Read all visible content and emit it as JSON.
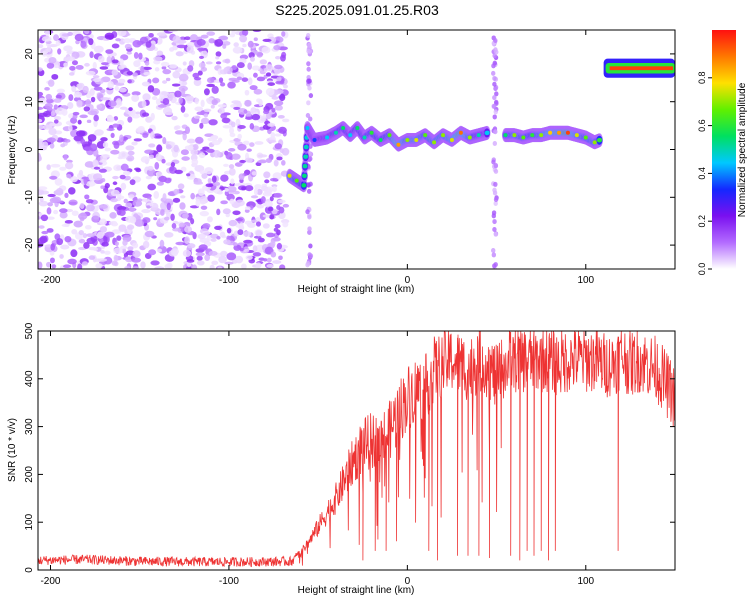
{
  "title": "S225.2025.091.01.25.R03",
  "colors": {
    "snr_line": "#ee3333",
    "plot_background": "#ffffff",
    "colormap_stops": [
      "#ffffff",
      "#b36bff",
      "#7a10f0",
      "#1428ff",
      "#00c8ff",
      "#00e060",
      "#60f000",
      "#ffe000",
      "#ff7800",
      "#ff1010"
    ]
  },
  "chart_data": [
    {
      "type": "heatmap",
      "xlabel": "Height of straight line (km)",
      "ylabel": "Frequency (Hz)",
      "xlim": [
        -207,
        150
      ],
      "ylim": [
        -25,
        25
      ],
      "x_ticks": [
        -200,
        -100,
        0,
        100
      ],
      "x_tick_labels": [
        "-200",
        "-100",
        "0",
        "100"
      ],
      "y_ticks": [
        -20,
        -10,
        0,
        10,
        20
      ],
      "y_tick_labels": [
        "-20",
        "-10",
        "0",
        "10",
        "20"
      ],
      "colorbar": {
        "label": "Normalized spectral amplitude",
        "range": [
          0,
          1
        ],
        "ticks": [
          0.0,
          0.2,
          0.4,
          0.6,
          0.8
        ],
        "tick_labels": [
          "0.0",
          "0.2",
          "0.4",
          "0.6",
          "0.8"
        ]
      },
      "ridge": {
        "x": [
          -66,
          -62,
          -58,
          -56,
          -52,
          -45,
          -40,
          -36,
          -32,
          -28,
          -24,
          -20,
          -15,
          -10,
          -5,
          0,
          5,
          10,
          15,
          20,
          25,
          30,
          35,
          40,
          45,
          55,
          60,
          65,
          70,
          75,
          80,
          85,
          90,
          95,
          100,
          105,
          108
        ],
        "freq": [
          -5.5,
          -6.5,
          -7.5,
          4.5,
          2.0,
          2.5,
          3.5,
          4.5,
          3.0,
          4.5,
          2.5,
          3.5,
          2.0,
          3.0,
          1.0,
          2.0,
          2.0,
          3.0,
          1.5,
          3.0,
          2.0,
          3.5,
          2.5,
          3.0,
          3.5,
          3.0,
          3.0,
          2.5,
          3.0,
          3.0,
          3.5,
          3.5,
          3.5,
          3.0,
          2.5,
          1.5,
          2.0
        ],
        "amp": [
          0.75,
          0.65,
          0.55,
          0.45,
          0.35,
          0.45,
          0.5,
          0.55,
          0.45,
          0.55,
          0.5,
          0.6,
          0.55,
          0.65,
          0.85,
          0.7,
          0.75,
          0.65,
          0.7,
          0.7,
          0.75,
          0.9,
          0.7,
          0.5,
          0.45,
          0.55,
          0.7,
          0.65,
          0.6,
          0.7,
          0.8,
          0.85,
          0.95,
          0.75,
          0.65,
          0.7,
          0.6
        ]
      },
      "upper_band": {
        "x_range": [
          110,
          150
        ],
        "freq": 17,
        "amp": 0.95
      },
      "noise_region": {
        "x_range": [
          -207,
          -68
        ],
        "amp_range": [
          0.02,
          0.2
        ]
      },
      "vertical_stripes": [
        -55,
        49
      ]
    },
    {
      "type": "line",
      "xlabel": "Height of straight line (km)",
      "ylabel": "SNR (10 * v/v)",
      "xlim": [
        -207,
        150
      ],
      "ylim": [
        0,
        500
      ],
      "x_ticks": [
        -200,
        -100,
        0,
        100
      ],
      "x_tick_labels": [
        "-200",
        "-100",
        "0",
        "100"
      ],
      "y_ticks": [
        0,
        100,
        200,
        300,
        400,
        500
      ],
      "y_tick_labels": [
        "0",
        "100",
        "200",
        "300",
        "400",
        "500"
      ],
      "series": [
        {
          "x": [
            -207,
            -180,
            -150,
            -120,
            -90,
            -65,
            -60,
            -55,
            -50,
            -45,
            -40,
            -35,
            -30,
            -25,
            -20,
            -15,
            -10,
            -5,
            0,
            5,
            10,
            15,
            20,
            25,
            30,
            35,
            40,
            45,
            50,
            55,
            60,
            65,
            70,
            75,
            80,
            85,
            90,
            95,
            100,
            105,
            110,
            115,
            120,
            125,
            130,
            135,
            140,
            145,
            150
          ],
          "baseline": [
            20,
            22,
            18,
            17,
            17,
            18,
            35,
            60,
            90,
            120,
            150,
            190,
            230,
            260,
            270,
            270,
            290,
            330,
            360,
            380,
            380,
            420,
            430,
            440,
            430,
            420,
            440,
            430,
            400,
            430,
            440,
            440,
            440,
            440,
            440,
            430,
            440,
            440,
            440,
            440,
            430,
            430,
            450,
            430,
            440,
            430,
            420,
            390,
            360
          ],
          "dropouts": [
            {
              "x": -25,
              "y": 20
            },
            {
              "x": -18,
              "y": 40
            },
            {
              "x": -12,
              "y": 40
            },
            {
              "x": -6,
              "y": 60
            },
            {
              "x": 12,
              "y": 40
            },
            {
              "x": 17,
              "y": 20
            },
            {
              "x": 28,
              "y": 30
            },
            {
              "x": 34,
              "y": 30
            },
            {
              "x": 40,
              "y": 30
            },
            {
              "x": 46,
              "y": 25
            },
            {
              "x": 58,
              "y": 30
            },
            {
              "x": 63,
              "y": 20
            },
            {
              "x": 67,
              "y": 40
            },
            {
              "x": 71,
              "y": 30
            },
            {
              "x": 75,
              "y": 40
            },
            {
              "x": 79,
              "y": 20
            },
            {
              "x": 83,
              "y": 40
            },
            {
              "x": 118,
              "y": 40
            }
          ]
        }
      ]
    }
  ]
}
